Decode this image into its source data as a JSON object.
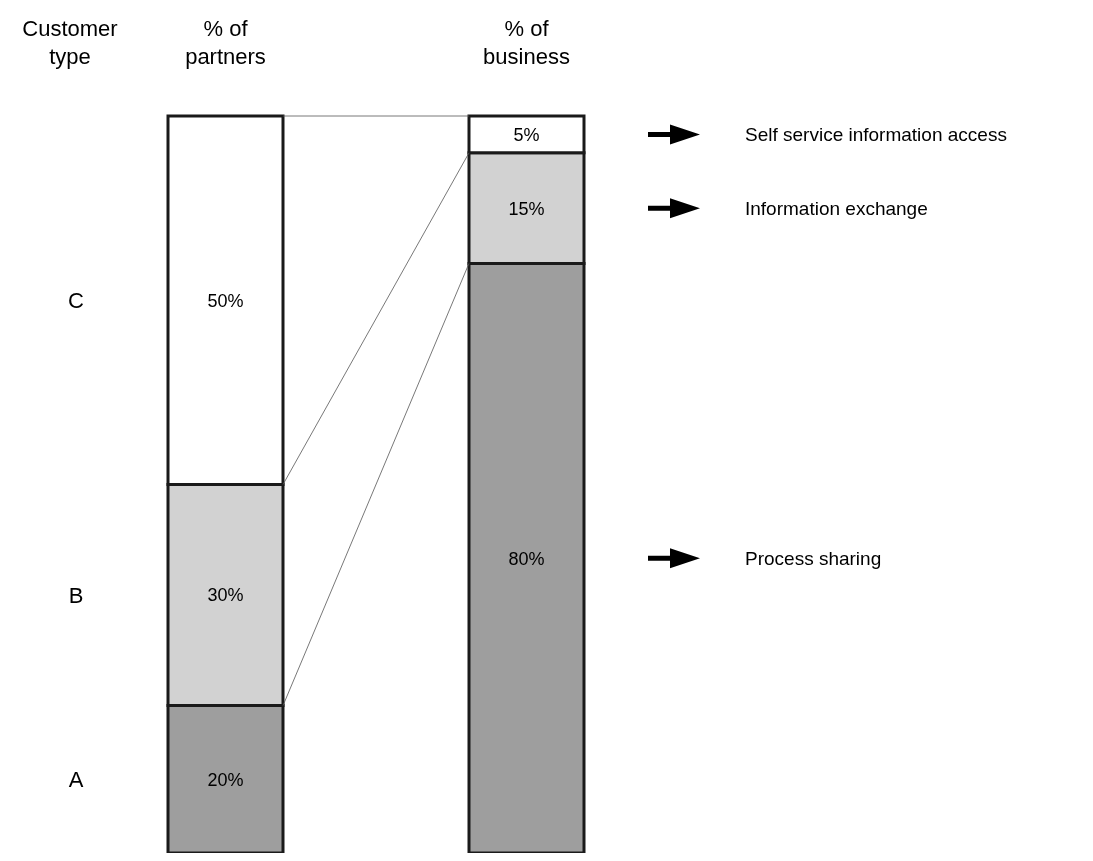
{
  "chart_data": {
    "type": "bar",
    "stacked": true,
    "ylabel": "Customer type",
    "categories": [
      "% of partners",
      "% of business"
    ],
    "series": [
      {
        "color": "#9e9e9e",
        "values": [
          20,
          80
        ],
        "value_labels": [
          "20%",
          "80%"
        ]
      },
      {
        "color": "#d2d2d2",
        "values": [
          30,
          15
        ],
        "value_labels": [
          "30%",
          "15%"
        ]
      },
      {
        "color": "#ffffff",
        "values": [
          50,
          5
        ],
        "value_labels": [
          "50%",
          "5%"
        ]
      }
    ],
    "annotations": [
      "A",
      "B",
      "C",
      "Process sharing",
      "Information exchange",
      "Self service information access"
    ]
  }
}
